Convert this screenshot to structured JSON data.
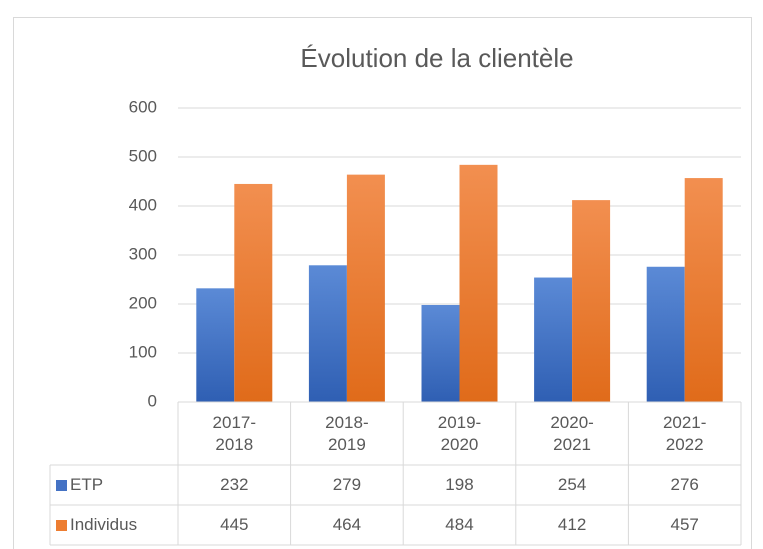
{
  "chart_data": {
    "type": "bar",
    "title": "Évolution de la clientèle",
    "categories": [
      "2017-2018",
      "2018-2019",
      "2019-2020",
      "2020-2021",
      "2021-2022"
    ],
    "series": [
      {
        "name": "ETP",
        "color": "#4472c4",
        "values": [
          232,
          279,
          198,
          254,
          276
        ]
      },
      {
        "name": "Individus",
        "color": "#ed7d31",
        "values": [
          445,
          464,
          484,
          412,
          457
        ]
      }
    ],
    "ylim": [
      0,
      600
    ],
    "yticks": [
      0,
      100,
      200,
      300,
      400,
      500,
      600
    ],
    "grid": true
  }
}
